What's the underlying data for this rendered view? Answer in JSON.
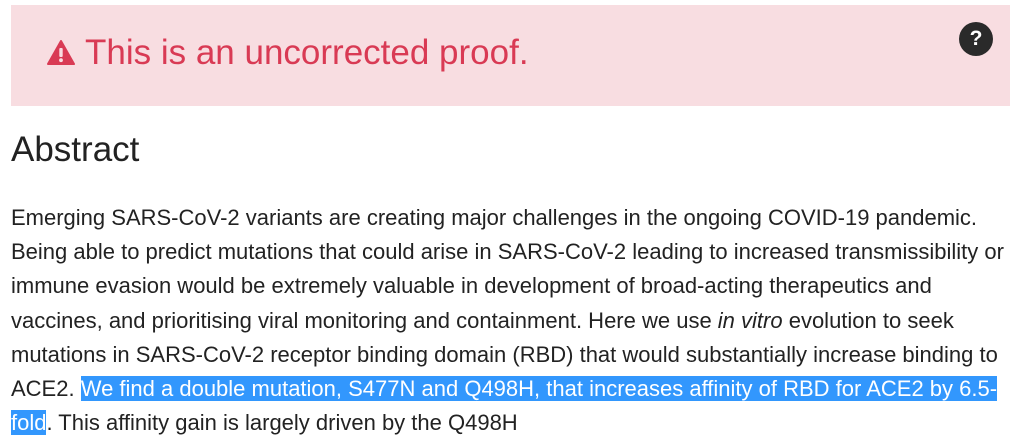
{
  "banner": {
    "icon": "warning-triangle-icon",
    "message": "This is an uncorrected proof.",
    "help_icon": "question-icon",
    "help_label": "?",
    "background": "#f8dde1",
    "text_color": "#d93a54"
  },
  "heading": "Abstract",
  "abstract": {
    "part1": "Emerging SARS-CoV-2 variants are creating major challenges in the ongoing COVID-19 pandemic. Being able to predict mutations that could arise in SARS-CoV-2 leading to increased transmissibility or immune evasion would be extremely valuable in development of broad-acting therapeutics and vaccines, and prioritising viral monitoring and containment. Here we use ",
    "italic": "in vitro",
    "part2": " evolution to seek mutations in SARS-CoV-2 receptor binding domain (RBD) that would substantially increase binding to ACE2. ",
    "selected": "We find a double mutation, S477N and Q498H, that increases affinity of RBD for ACE2 by 6.5-fold",
    "part3": ". This affinity gain is largely driven by the Q498H",
    "selection_color": "#3297fd"
  }
}
